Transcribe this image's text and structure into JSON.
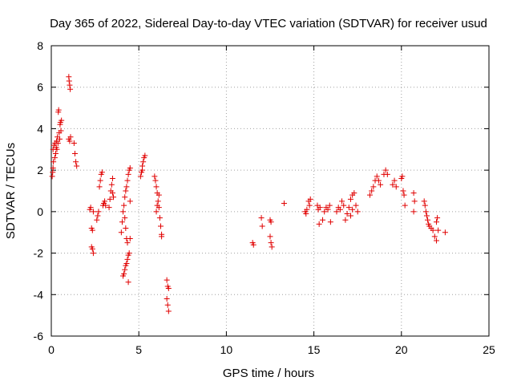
{
  "chart_data": {
    "type": "scatter",
    "title": "Day 365 of 2022, Sidereal Day-to-day VTEC variation (SDTVAR) for receiver usud",
    "xlabel": "GPS time / hours",
    "ylabel": "SDTVAR / TECUs",
    "xlim": [
      0,
      25
    ],
    "ylim": [
      -6,
      8
    ],
    "x_ticks": [
      "0",
      "5",
      "10",
      "15",
      "20",
      "25"
    ],
    "y_ticks": [
      "-6",
      "-4",
      "-2",
      "0",
      "2",
      "4",
      "6",
      "8"
    ],
    "grid": true,
    "marker": "plus",
    "color": "#e00000",
    "series": [
      {
        "name": "usud",
        "points": [
          [
            0.05,
            1.7
          ],
          [
            0.08,
            1.9
          ],
          [
            0.1,
            2.1
          ],
          [
            0.12,
            2.4
          ],
          [
            0.1,
            3.0
          ],
          [
            0.15,
            3.2
          ],
          [
            0.2,
            2.6
          ],
          [
            0.22,
            3.3
          ],
          [
            0.25,
            2.8
          ],
          [
            0.28,
            3.1
          ],
          [
            0.3,
            3.4
          ],
          [
            0.32,
            3.0
          ],
          [
            0.35,
            3.6
          ],
          [
            0.38,
            3.3
          ],
          [
            0.4,
            4.8
          ],
          [
            0.42,
            4.9
          ],
          [
            0.45,
            3.8
          ],
          [
            0.48,
            3.5
          ],
          [
            0.5,
            4.2
          ],
          [
            0.52,
            4.3
          ],
          [
            0.55,
            3.9
          ],
          [
            0.58,
            4.4
          ],
          [
            1.0,
            6.5
          ],
          [
            1.02,
            6.3
          ],
          [
            1.05,
            6.1
          ],
          [
            1.08,
            5.9
          ],
          [
            1.0,
            3.5
          ],
          [
            1.05,
            3.4
          ],
          [
            1.1,
            3.6
          ],
          [
            1.3,
            3.3
          ],
          [
            1.35,
            2.8
          ],
          [
            1.4,
            2.4
          ],
          [
            1.45,
            2.2
          ],
          [
            2.2,
            0.1
          ],
          [
            2.25,
            0.2
          ],
          [
            2.3,
            -0.8
          ],
          [
            2.35,
            -0.9
          ],
          [
            2.3,
            -1.7
          ],
          [
            2.35,
            -1.8
          ],
          [
            2.4,
            -2.0
          ],
          [
            2.4,
            0.0
          ],
          [
            2.6,
            -0.4
          ],
          [
            2.65,
            -0.2
          ],
          [
            2.7,
            0.0
          ],
          [
            2.75,
            1.2
          ],
          [
            2.8,
            1.5
          ],
          [
            2.85,
            1.8
          ],
          [
            2.9,
            1.9
          ],
          [
            2.95,
            0.3
          ],
          [
            3.0,
            0.4
          ],
          [
            3.05,
            0.5
          ],
          [
            3.1,
            0.3
          ],
          [
            3.3,
            0.2
          ],
          [
            3.35,
            0.6
          ],
          [
            3.4,
            1.0
          ],
          [
            3.45,
            1.3
          ],
          [
            3.5,
            1.6
          ],
          [
            3.5,
            0.9
          ],
          [
            3.55,
            0.7
          ],
          [
            4.0,
            -1.0
          ],
          [
            4.05,
            -0.5
          ],
          [
            4.1,
            0.0
          ],
          [
            4.1,
            -3.1
          ],
          [
            4.15,
            0.3
          ],
          [
            4.15,
            -3.0
          ],
          [
            4.2,
            -2.8
          ],
          [
            4.2,
            0.7
          ],
          [
            4.25,
            -2.6
          ],
          [
            4.25,
            1.0
          ],
          [
            4.3,
            -2.5
          ],
          [
            4.3,
            1.2
          ],
          [
            4.35,
            -2.3
          ],
          [
            4.35,
            1.5
          ],
          [
            4.4,
            -2.1
          ],
          [
            4.4,
            1.8
          ],
          [
            4.45,
            -2.0
          ],
          [
            4.45,
            2.0
          ],
          [
            4.5,
            2.1
          ],
          [
            4.3,
            -1.3
          ],
          [
            4.35,
            -1.5
          ],
          [
            4.4,
            -3.4
          ],
          [
            4.5,
            -1.3
          ],
          [
            4.2,
            -0.3
          ],
          [
            4.25,
            -0.8
          ],
          [
            4.5,
            0.5
          ],
          [
            5.1,
            1.7
          ],
          [
            5.15,
            1.9
          ],
          [
            5.2,
            2.2
          ],
          [
            5.25,
            2.4
          ],
          [
            5.3,
            2.6
          ],
          [
            5.35,
            2.7
          ],
          [
            5.2,
            2.0
          ],
          [
            5.9,
            1.7
          ],
          [
            5.95,
            1.5
          ],
          [
            6.0,
            1.2
          ],
          [
            6.05,
            0.9
          ],
          [
            6.1,
            0.5
          ],
          [
            6.15,
            0.2
          ],
          [
            6.2,
            -0.3
          ],
          [
            6.25,
            -0.7
          ],
          [
            6.3,
            -1.1
          ],
          [
            6.3,
            -1.2
          ],
          [
            6.0,
            0.0
          ],
          [
            6.05,
            0.3
          ],
          [
            6.15,
            0.8
          ],
          [
            6.6,
            -3.3
          ],
          [
            6.65,
            -3.6
          ],
          [
            6.7,
            -3.7
          ],
          [
            6.6,
            -4.2
          ],
          [
            6.65,
            -4.5
          ],
          [
            6.7,
            -4.8
          ],
          [
            11.5,
            -1.5
          ],
          [
            11.55,
            -1.6
          ],
          [
            12.0,
            -0.3
          ],
          [
            12.05,
            -0.7
          ],
          [
            12.5,
            -0.4
          ],
          [
            12.55,
            -0.5
          ],
          [
            12.5,
            -1.2
          ],
          [
            12.55,
            -1.5
          ],
          [
            12.6,
            -1.7
          ],
          [
            13.3,
            0.4
          ],
          [
            14.5,
            0.0
          ],
          [
            14.55,
            -0.1
          ],
          [
            14.6,
            0.1
          ],
          [
            14.7,
            0.5
          ],
          [
            14.75,
            0.3
          ],
          [
            14.8,
            0.6
          ],
          [
            15.2,
            0.3
          ],
          [
            15.25,
            0.1
          ],
          [
            15.3,
            -0.6
          ],
          [
            15.35,
            0.2
          ],
          [
            15.5,
            -0.4
          ],
          [
            15.6,
            0.0
          ],
          [
            15.7,
            0.2
          ],
          [
            15.8,
            0.1
          ],
          [
            15.9,
            0.3
          ],
          [
            15.95,
            -0.5
          ],
          [
            16.3,
            0.0
          ],
          [
            16.4,
            0.2
          ],
          [
            16.5,
            0.1
          ],
          [
            16.6,
            0.5
          ],
          [
            16.7,
            0.3
          ],
          [
            16.8,
            -0.4
          ],
          [
            16.9,
            -0.1
          ],
          [
            17.0,
            0.2
          ],
          [
            17.1,
            0.6
          ],
          [
            17.2,
            0.8
          ],
          [
            17.3,
            0.9
          ],
          [
            17.4,
            0.3
          ],
          [
            17.5,
            0.0
          ],
          [
            17.1,
            -0.2
          ],
          [
            17.2,
            0.1
          ],
          [
            18.2,
            0.8
          ],
          [
            18.3,
            1.0
          ],
          [
            18.4,
            1.2
          ],
          [
            18.5,
            1.5
          ],
          [
            18.6,
            1.7
          ],
          [
            18.7,
            1.5
          ],
          [
            18.8,
            1.3
          ],
          [
            19.0,
            1.8
          ],
          [
            19.1,
            2.0
          ],
          [
            19.2,
            1.8
          ],
          [
            19.5,
            1.3
          ],
          [
            19.6,
            1.5
          ],
          [
            19.7,
            1.2
          ],
          [
            20.0,
            1.6
          ],
          [
            20.05,
            1.7
          ],
          [
            20.1,
            1.0
          ],
          [
            20.15,
            0.8
          ],
          [
            20.2,
            0.3
          ],
          [
            20.7,
            0.9
          ],
          [
            20.75,
            0.5
          ],
          [
            20.7,
            0.0
          ],
          [
            21.3,
            0.5
          ],
          [
            21.35,
            0.3
          ],
          [
            21.4,
            0.0
          ],
          [
            21.45,
            -0.2
          ],
          [
            21.5,
            -0.4
          ],
          [
            21.55,
            -0.6
          ],
          [
            21.6,
            -0.7
          ],
          [
            21.7,
            -0.8
          ],
          [
            21.8,
            -0.9
          ],
          [
            21.9,
            -1.2
          ],
          [
            22.0,
            -1.4
          ],
          [
            22.05,
            -0.3
          ],
          [
            22.0,
            -0.5
          ],
          [
            22.1,
            -0.9
          ],
          [
            22.5,
            -1.0
          ]
        ]
      }
    ]
  }
}
